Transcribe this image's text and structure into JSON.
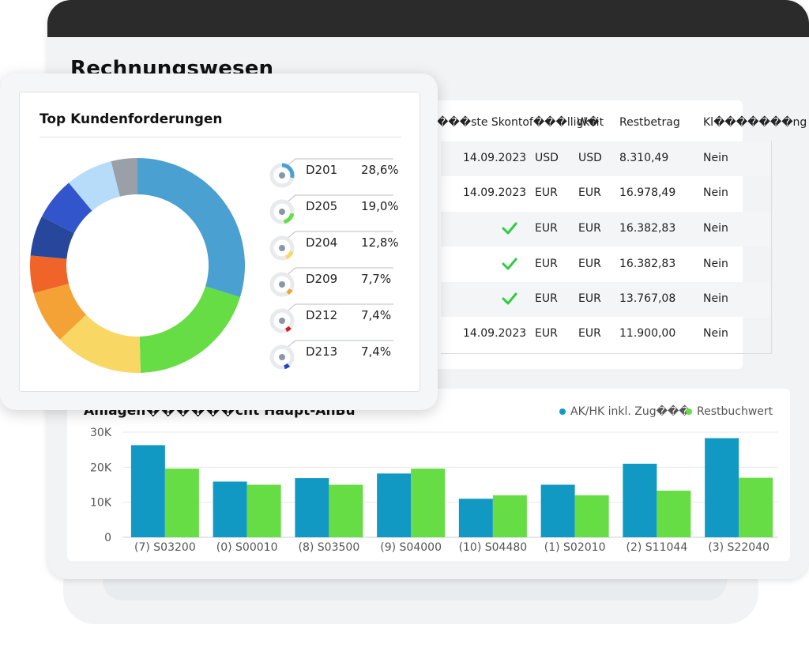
{
  "main": {
    "title": "Rechnungswesen"
  },
  "table": {
    "headers": [
      "���ste Skontof���lligkeit",
      "W�",
      "Restbetrag",
      "Kl�������ng"
    ],
    "rows": [
      {
        "date": "14.09.2023",
        "cur1": "USD",
        "cur2": "USD",
        "amount": "8.310,49",
        "flag": "Nein",
        "check": false
      },
      {
        "date": "14.09.2023",
        "cur1": "EUR",
        "cur2": "EUR",
        "amount": "16.978,49",
        "flag": "Nein",
        "check": false
      },
      {
        "date": "",
        "cur1": "EUR",
        "cur2": "EUR",
        "amount": "16.382,83",
        "flag": "Nein",
        "check": true
      },
      {
        "date": "",
        "cur1": "EUR",
        "cur2": "EUR",
        "amount": "16.382,83",
        "flag": "Nein",
        "check": true
      },
      {
        "date": "",
        "cur1": "EUR",
        "cur2": "EUR",
        "amount": "13.767,08",
        "flag": "Nein",
        "check": true
      },
      {
        "date": "14.09.2023",
        "cur1": "EUR",
        "cur2": "EUR",
        "amount": "11.900,00",
        "flag": "Nein",
        "check": false
      }
    ],
    "check_icon": "check-icon",
    "check_color": "#2ecc40"
  },
  "bar_chart": {
    "title": "Anlagen������cht Haupt-AnBu",
    "legend": [
      {
        "label": "AK/HK inkl. Zug���",
        "color": "#1199c4"
      },
      {
        "label": "Restbuchwert",
        "color": "#66dd44"
      }
    ]
  },
  "donut": {
    "title": "Top Kundenforderungen",
    "legend": [
      {
        "code": "D201",
        "pct": "28,6%",
        "value": 28.6,
        "color": "#4aa0d0"
      },
      {
        "code": "D205",
        "pct": "19,0%",
        "value": 19.0,
        "color": "#66dd44"
      },
      {
        "code": "D204",
        "pct": "12,8%",
        "value": 12.8,
        "color": "#f9d765"
      },
      {
        "code": "D209",
        "pct": "7,7%",
        "value": 7.7,
        "color": "#f4a236"
      },
      {
        "code": "D212",
        "pct": "7,4%",
        "value": 7.4,
        "color": "#cc2222"
      },
      {
        "code": "D213",
        "pct": "7,4%",
        "value": 7.4,
        "color": "#2244bb"
      }
    ]
  },
  "chart_data": [
    {
      "type": "bar",
      "title": "Anlagen������cht Haupt-AnBu",
      "categories": [
        "(7) S03200",
        "(0) S00010",
        "(8) S03500",
        "(9) S04000",
        "(10) S04480",
        "(1) S02010",
        "(2) S11044",
        "(3) S22040"
      ],
      "series": [
        {
          "name": "AK/HK inkl. Zug���",
          "color": "#1199c4",
          "values": [
            26300,
            15900,
            16900,
            18200,
            11000,
            15000,
            21000,
            28300
          ]
        },
        {
          "name": "Restbuchwert",
          "color": "#66dd44",
          "values": [
            19600,
            15000,
            15000,
            19600,
            12000,
            12000,
            13300,
            17000
          ]
        }
      ],
      "ylim": [
        0,
        30000
      ],
      "yticks": [
        "0",
        "10K",
        "20K",
        "30K"
      ],
      "ytick_values": [
        0,
        10000,
        20000,
        30000
      ],
      "grid": true,
      "legend_position": "top-right"
    },
    {
      "type": "pie",
      "title": "Top Kundenforderungen",
      "donut": true,
      "slices": [
        {
          "label": "D201",
          "value": 28.6,
          "color": "#4aa0d0"
        },
        {
          "label": "D205",
          "value": 19.0,
          "color": "#66dd44"
        },
        {
          "label": "D204",
          "value": 12.8,
          "color": "#f9d765"
        },
        {
          "label": "D209",
          "value": 7.7,
          "color": "#f4a236"
        },
        {
          "label": "",
          "value": 5.4,
          "color": "#f0642a"
        },
        {
          "label": "",
          "value": 5.8,
          "color": "#27479c"
        },
        {
          "label": "",
          "value": 6.2,
          "color": "#3355cc"
        },
        {
          "label": "",
          "value": 6.8,
          "color": "#b6dcfa"
        },
        {
          "label": "",
          "value": 3.8,
          "color": "#9aa0a8"
        }
      ]
    }
  ]
}
